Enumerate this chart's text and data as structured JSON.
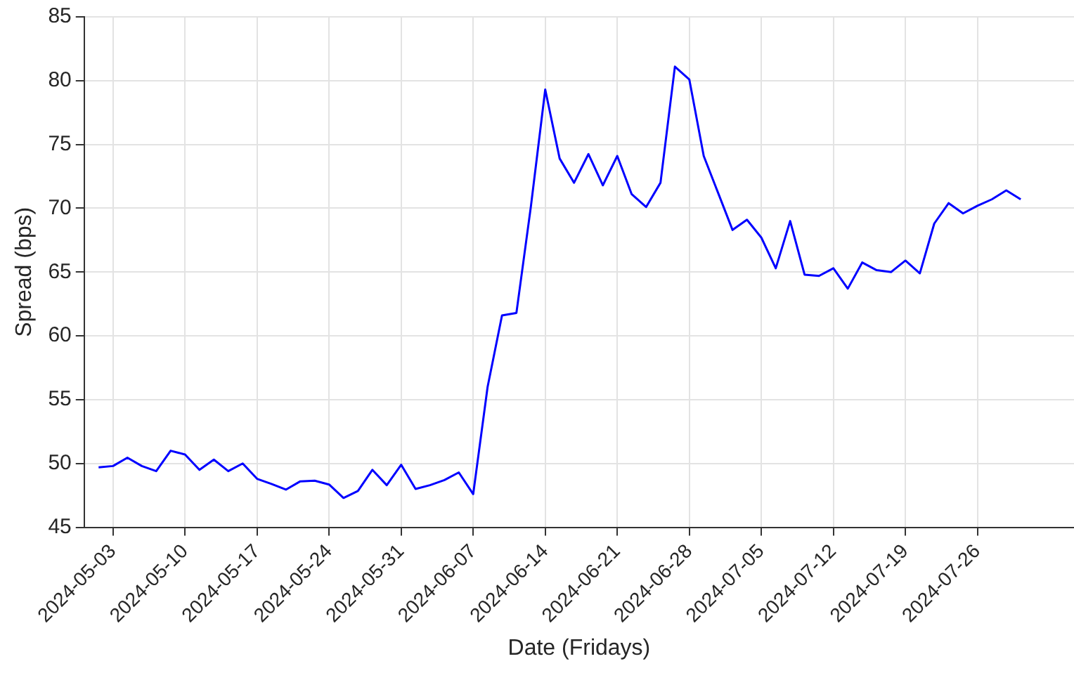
{
  "chart_data": {
    "type": "line",
    "xlabel": "Date (Fridays)",
    "ylabel": "Spread (bps)",
    "categories": [
      null,
      "2024-05-03",
      null,
      null,
      null,
      null,
      "2024-05-10",
      null,
      null,
      null,
      null,
      "2024-05-17",
      null,
      null,
      null,
      null,
      "2024-05-24",
      null,
      null,
      null,
      null,
      "2024-05-31",
      null,
      null,
      null,
      null,
      "2024-06-07",
      null,
      null,
      null,
      null,
      "2024-06-14",
      null,
      null,
      null,
      null,
      "2024-06-21",
      null,
      null,
      null,
      null,
      "2024-06-28",
      null,
      null,
      null,
      null,
      "2024-07-05",
      null,
      null,
      null,
      null,
      "2024-07-12",
      null,
      null,
      null,
      null,
      "2024-07-19",
      null,
      null,
      null,
      null,
      "2024-07-26",
      null,
      null,
      null
    ],
    "series": [
      {
        "color": "#0000ff",
        "values": [
          49.7,
          49.8,
          50.45,
          49.8,
          49.4,
          51.0,
          50.7,
          49.5,
          50.3,
          49.4,
          50.0,
          48.8,
          48.4,
          47.95,
          48.6,
          48.65,
          48.35,
          47.3,
          47.85,
          49.5,
          48.3,
          49.9,
          48.0,
          48.3,
          48.7,
          49.3,
          47.6,
          56.0,
          61.6,
          61.8,
          70.1,
          79.3,
          73.9,
          72.0,
          74.25,
          71.8,
          74.1,
          71.1,
          70.1,
          72.0,
          81.1,
          80.1,
          74.1,
          71.2,
          68.3,
          69.1,
          67.7,
          65.3,
          69.0,
          64.8,
          64.7,
          65.3,
          63.7,
          65.75,
          65.15,
          65.0,
          65.9,
          64.9,
          68.8,
          70.4,
          69.6,
          70.2,
          70.7,
          71.4,
          70.7
        ]
      }
    ],
    "ylim": [
      45,
      85
    ],
    "yticks": [
      45,
      50,
      55,
      60,
      65,
      70,
      75,
      80,
      85
    ],
    "grid": true,
    "legend": false,
    "marker": "none",
    "line_style": "solid"
  }
}
